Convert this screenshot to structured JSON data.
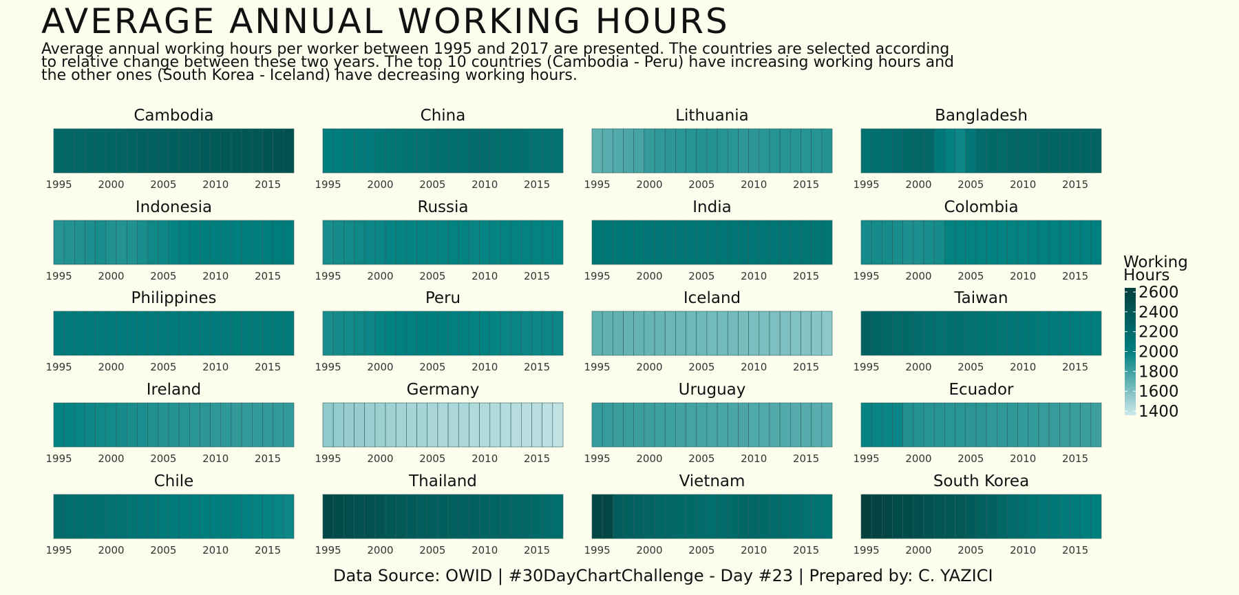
{
  "title": "AVERAGE ANNUAL WORKING HOURS",
  "subtitle": "Average annual working hours per worker between 1995 and 2017 are presented. The countries are selected according to relative change between these two years. The top 10 countries (Cambodia - Peru) have increasing working hours and the other ones (South Korea - Iceland) have decreasing working hours.",
  "caption": "Data Source: OWID | #30DayChartChallenge - Day #23 | Prepared by: C. YAZICI",
  "chart_data": {
    "type": "heatmap",
    "years": [
      1995,
      1996,
      1997,
      1998,
      1999,
      2000,
      2001,
      2002,
      2003,
      2004,
      2005,
      2006,
      2007,
      2008,
      2009,
      2010,
      2011,
      2012,
      2013,
      2014,
      2015,
      2016,
      2017
    ],
    "x_ticks": [
      1995,
      2000,
      2005,
      2010,
      2015
    ],
    "legend": {
      "title": "Working Hours",
      "ticks": [
        2600,
        2400,
        2200,
        2000,
        1800,
        1600,
        1400
      ],
      "range": [
        1350,
        2650
      ],
      "colors": [
        "#cde8ea",
        "#008080",
        "#033f3d"
      ]
    },
    "panels": [
      {
        "country": "Cambodia",
        "values": [
          2240,
          2250,
          2260,
          2270,
          2275,
          2280,
          2290,
          2300,
          2310,
          2320,
          2330,
          2340,
          2350,
          2360,
          2370,
          2380,
          2390,
          2400,
          2410,
          2420,
          2440,
          2460,
          2470
        ]
      },
      {
        "country": "China",
        "values": [
          2030,
          2040,
          2050,
          2055,
          2060,
          2080,
          2100,
          2120,
          2140,
          2150,
          2160,
          2170,
          2180,
          2190,
          2200,
          2200,
          2190,
          2180,
          2170,
          2160,
          2150,
          2150,
          2150
        ]
      },
      {
        "country": "Lithuania",
        "values": [
          1700,
          1720,
          1740,
          1760,
          1780,
          1830,
          1850,
          1860,
          1870,
          1880,
          1890,
          1890,
          1880,
          1870,
          1860,
          1860,
          1870,
          1880,
          1880,
          1880,
          1880,
          1880,
          1890
        ]
      },
      {
        "country": "Bangladesh",
        "values": [
          2140,
          2160,
          2180,
          2200,
          2230,
          2260,
          2240,
          2080,
          2000,
          1960,
          2100,
          2200,
          2220,
          2230,
          2240,
          2250,
          2260,
          2270,
          2270,
          2270,
          2280,
          2280,
          2280
        ]
      },
      {
        "country": "Indonesia",
        "values": [
          1880,
          1890,
          1900,
          1910,
          1920,
          1900,
          1890,
          1900,
          1920,
          1950,
          1960,
          1980,
          2000,
          2010,
          2020,
          2020,
          2030,
          2030,
          2030,
          2030,
          2030,
          2040,
          2040
        ]
      },
      {
        "country": "Russia",
        "values": [
          1920,
          1930,
          1940,
          1950,
          1960,
          1970,
          1980,
          1980,
          1980,
          1980,
          1980,
          1980,
          1990,
          1990,
          1970,
          1980,
          1980,
          1990,
          1990,
          1990,
          1990,
          1990,
          1990
        ]
      },
      {
        "country": "India",
        "values": [
          2090,
          2090,
          2090,
          2090,
          2090,
          2100,
          2100,
          2100,
          2100,
          2100,
          2100,
          2110,
          2110,
          2110,
          2110,
          2110,
          2110,
          2110,
          2110,
          2110,
          2120,
          2120,
          2120
        ]
      },
      {
        "country": "Colombia",
        "values": [
          1930,
          1930,
          1930,
          1920,
          1910,
          1910,
          1920,
          1930,
          1990,
          1990,
          1990,
          1990,
          1990,
          1990,
          1990,
          1990,
          2000,
          2000,
          2000,
          2000,
          2000,
          2000,
          2000
        ]
      },
      {
        "country": "Philippines",
        "values": [
          2060,
          2060,
          2060,
          2060,
          2060,
          2060,
          2060,
          2060,
          2060,
          2060,
          2060,
          2060,
          2060,
          2060,
          2060,
          2060,
          2060,
          2070,
          2070,
          2070,
          2070,
          2070,
          2070
        ]
      },
      {
        "country": "Peru",
        "values": [
          1920,
          1930,
          1940,
          1950,
          1960,
          1980,
          1990,
          2000,
          2000,
          2010,
          2010,
          2010,
          2000,
          2000,
          1990,
          1990,
          1980,
          1970,
          1970,
          1960,
          1960,
          1960,
          1960
        ]
      },
      {
        "country": "Iceland",
        "values": [
          1700,
          1690,
          1690,
          1680,
          1680,
          1670,
          1670,
          1660,
          1660,
          1650,
          1650,
          1640,
          1640,
          1630,
          1620,
          1610,
          1610,
          1600,
          1600,
          1590,
          1580,
          1570,
          1550
        ]
      },
      {
        "country": "Taiwan",
        "values": [
          2300,
          2290,
          2250,
          2220,
          2230,
          2200,
          2160,
          2150,
          2160,
          2160,
          2150,
          2140,
          2130,
          2120,
          2100,
          2100,
          2080,
          2060,
          2060,
          2050,
          2040,
          2030,
          2030
        ]
      },
      {
        "country": "Ireland",
        "values": [
          1990,
          1980,
          1970,
          1960,
          1950,
          1940,
          1930,
          1920,
          1910,
          1900,
          1890,
          1890,
          1880,
          1870,
          1860,
          1850,
          1850,
          1840,
          1840,
          1840,
          1840,
          1840,
          1840
        ]
      },
      {
        "country": "Germany",
        "values": [
          1540,
          1530,
          1520,
          1520,
          1510,
          1500,
          1490,
          1480,
          1470,
          1470,
          1460,
          1450,
          1450,
          1450,
          1440,
          1440,
          1440,
          1430,
          1420,
          1410,
          1410,
          1400,
          1390
        ]
      },
      {
        "country": "Uruguay",
        "values": [
          1830,
          1830,
          1820,
          1820,
          1810,
          1810,
          1800,
          1800,
          1790,
          1780,
          1780,
          1770,
          1770,
          1760,
          1760,
          1750,
          1750,
          1740,
          1740,
          1730,
          1730,
          1720,
          1720
        ]
      },
      {
        "country": "Ecuador",
        "values": [
          1980,
          1970,
          1970,
          1960,
          1900,
          1890,
          1880,
          1880,
          1870,
          1870,
          1860,
          1860,
          1850,
          1850,
          1850,
          1840,
          1840,
          1830,
          1830,
          1820,
          1820,
          1810,
          1810
        ]
      },
      {
        "country": "Chile",
        "values": [
          2200,
          2190,
          2180,
          2170,
          2160,
          2150,
          2140,
          2120,
          2110,
          2100,
          2070,
          2060,
          2050,
          2040,
          2030,
          2020,
          2020,
          2010,
          2000,
          1990,
          1980,
          1970,
          1960
        ]
      },
      {
        "country": "Thailand",
        "values": [
          2560,
          2530,
          2500,
          2480,
          2470,
          2430,
          2400,
          2390,
          2370,
          2360,
          2350,
          2340,
          2330,
          2320,
          2310,
          2290,
          2280,
          2270,
          2250,
          2240,
          2220,
          2200,
          2180
        ]
      },
      {
        "country": "Vietnam",
        "values": [
          2580,
          2570,
          2360,
          2330,
          2300,
          2280,
          2250,
          2240,
          2230,
          2220,
          2200,
          2190,
          2200,
          2230,
          2250,
          2260,
          2230,
          2200,
          2180,
          2170,
          2150,
          2140,
          2130
        ]
      },
      {
        "country": "South Korea",
        "values": [
          2640,
          2620,
          2580,
          2520,
          2520,
          2500,
          2450,
          2430,
          2410,
          2400,
          2370,
          2330,
          2300,
          2250,
          2200,
          2180,
          2140,
          2100,
          2080,
          2060,
          2050,
          2030,
          2010
        ]
      }
    ]
  }
}
